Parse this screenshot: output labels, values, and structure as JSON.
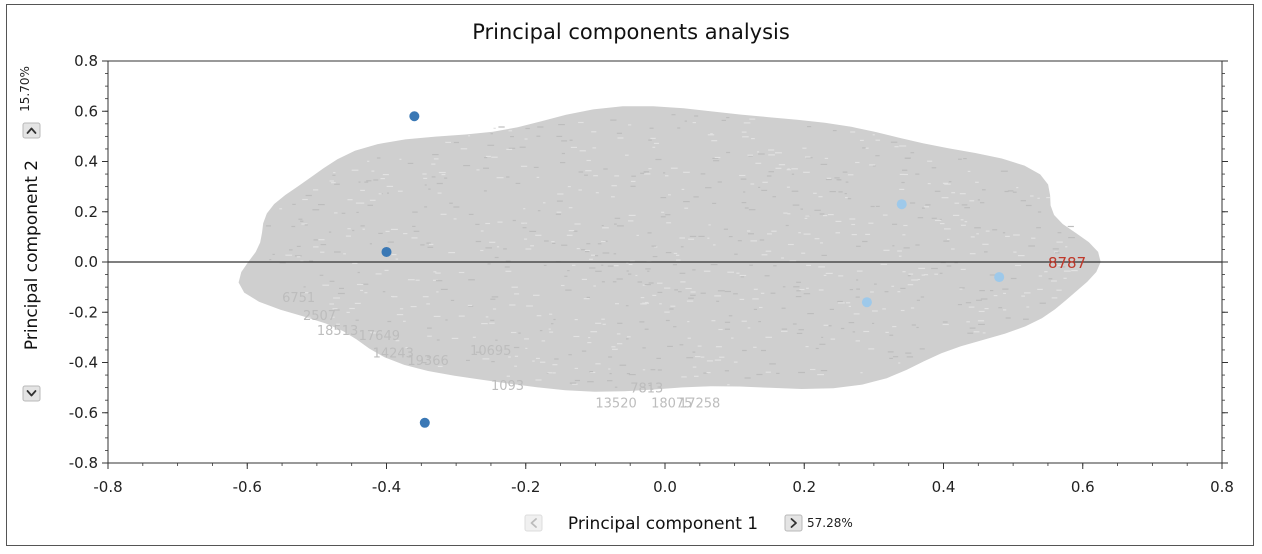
{
  "chart_data": {
    "type": "scatter",
    "title": "Principal components analysis",
    "xlabel": "Principal component 1",
    "ylabel": "Principal component 2",
    "x_variance_label": "57.28%",
    "y_variance_label": "15.70%",
    "xlim": [
      -0.8,
      0.8
    ],
    "ylim": [
      -0.8,
      0.8
    ],
    "x_ticks": [
      "-0.8",
      "-0.6",
      "-0.4",
      "-0.2",
      "0.0",
      "0.2",
      "0.4",
      "0.6",
      "0.8"
    ],
    "y_ticks": [
      "0.8",
      "0.6",
      "0.4",
      "0.2",
      "0.0",
      "-0.2",
      "-0.4",
      "-0.6",
      "-0.8"
    ],
    "grid": false,
    "background_cloud": {
      "description": "dense grey cloud of overlapping numeric point labels",
      "center": [
        0.0,
        0.0
      ],
      "x_extent": [
        -0.6,
        0.61
      ],
      "y_extent": [
        -0.52,
        0.6
      ],
      "color": "#cfcfcf"
    },
    "series": [
      {
        "color": "#3a78b5",
        "points": [
          {
            "x": -0.36,
            "y": 0.58
          },
          {
            "x": -0.4,
            "y": 0.04
          },
          {
            "x": -0.345,
            "y": -0.64
          }
        ]
      },
      {
        "color": "#9ec9ea",
        "points": [
          {
            "x": 0.34,
            "y": 0.23
          },
          {
            "x": 0.29,
            "y": -0.16
          },
          {
            "x": 0.48,
            "y": -0.06
          }
        ]
      }
    ],
    "annotations": [
      {
        "text": "8787",
        "x": 0.55,
        "y": 0.0,
        "color": "#c0392b"
      }
    ],
    "faint_labels": [
      {
        "text": "2507",
        "x": -0.52,
        "y": -0.23
      },
      {
        "text": "18513",
        "x": -0.5,
        "y": -0.29
      },
      {
        "text": "17649",
        "x": -0.44,
        "y": -0.31
      },
      {
        "text": "14243",
        "x": -0.42,
        "y": -0.38
      },
      {
        "text": "19366",
        "x": -0.37,
        "y": -0.41
      },
      {
        "text": "10695",
        "x": -0.28,
        "y": -0.37
      },
      {
        "text": "1093",
        "x": -0.25,
        "y": -0.51
      },
      {
        "text": "6751",
        "x": -0.55,
        "y": -0.16
      },
      {
        "text": "13520",
        "x": -0.1,
        "y": -0.58
      },
      {
        "text": "18075",
        "x": -0.02,
        "y": -0.58
      },
      {
        "text": "17258",
        "x": 0.02,
        "y": -0.58
      },
      {
        "text": "7813",
        "x": -0.05,
        "y": -0.52
      }
    ]
  }
}
